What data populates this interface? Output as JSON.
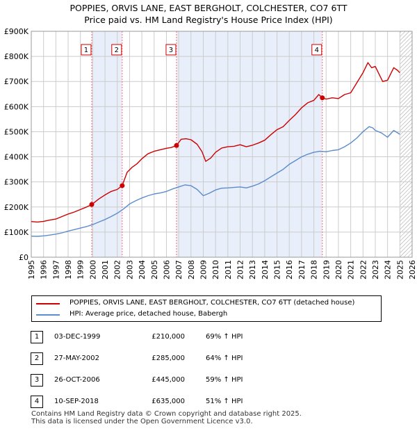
{
  "title_line1": "POPPIES, ORVIS LANE, EAST BERGHOLT, COLCHESTER, CO7 6TT",
  "title_line2": "Price paid vs. HM Land Registry's House Price Index (HPI)",
  "colors": {
    "property_line": "#cc0000",
    "hpi_line": "#5b8ccc",
    "shade": "#e8eefa",
    "grid": "#cccccc",
    "vline": "#ff6666",
    "hatch": "#999999"
  },
  "legend": {
    "property_label": "POPPIES, ORVIS LANE, EAST BERGHOLT, COLCHESTER, CO7 6TT (detached house)",
    "hpi_label": "HPI: Average price, detached house, Babergh"
  },
  "sales": [
    {
      "num": "1",
      "date": "03-DEC-1999",
      "price": "£210,000",
      "hpi": "69% ↑ HPI"
    },
    {
      "num": "2",
      "date": "27-MAY-2002",
      "price": "£285,000",
      "hpi": "64% ↑ HPI"
    },
    {
      "num": "3",
      "date": "26-OCT-2006",
      "price": "£445,000",
      "hpi": "59% ↑ HPI"
    },
    {
      "num": "4",
      "date": "10-SEP-2018",
      "price": "£635,000",
      "hpi": "51% ↑ HPI"
    }
  ],
  "footer": {
    "line1": "Contains HM Land Registry data © Crown copyright and database right 2025.",
    "line2": "This data is licensed under the Open Government Licence v3.0."
  },
  "chart_data": {
    "type": "line",
    "xlim": [
      1995,
      2026
    ],
    "ylim": [
      0,
      900000
    ],
    "y_ticks": [
      0,
      100000,
      200000,
      300000,
      400000,
      500000,
      600000,
      700000,
      800000,
      900000
    ],
    "y_tick_labels": [
      "£0",
      "£100K",
      "£200K",
      "£300K",
      "£400K",
      "£500K",
      "£600K",
      "£700K",
      "£800K",
      "£900K"
    ],
    "x_ticks": [
      1995,
      1996,
      1997,
      1998,
      1999,
      2000,
      2001,
      2002,
      2003,
      2004,
      2005,
      2006,
      2007,
      2008,
      2009,
      2010,
      2011,
      2012,
      2013,
      2014,
      2015,
      2016,
      2017,
      2018,
      2019,
      2020,
      2021,
      2022,
      2023,
      2024,
      2025,
      2026
    ],
    "x_tick_labels": [
      "1995",
      "1996",
      "1997",
      "1998",
      "1999",
      "2000",
      "2001",
      "2002",
      "2003",
      "2004",
      "2005",
      "2006",
      "2007",
      "2008",
      "2009",
      "2010",
      "2011",
      "2012",
      "2013",
      "2014",
      "2015",
      "2016",
      "2017",
      "2018",
      "2019",
      "2020",
      "2021",
      "2022",
      "2023",
      "2024",
      "2025",
      "2026"
    ],
    "shaded_ranges": [
      [
        1999.92,
        2002.4
      ],
      [
        2006.82,
        2018.69
      ]
    ],
    "hatch_from": 2025.0,
    "series": [
      {
        "name": "POPPIES, ORVIS LANE, EAST BERGHOLT, COLCHESTER, CO7 6TT (detached house)",
        "x": [
          1995.0,
          1995.5,
          1996.0,
          1996.5,
          1997.0,
          1997.5,
          1998.0,
          1998.5,
          1999.0,
          1999.5,
          1999.92,
          2000.5,
          2001.0,
          2001.5,
          2002.0,
          2002.4,
          2002.8,
          2003.2,
          2003.6,
          2004.0,
          2004.5,
          2005.0,
          2005.5,
          2006.0,
          2006.4,
          2006.82,
          2007.2,
          2007.6,
          2008.0,
          2008.5,
          2008.9,
          2009.2,
          2009.6,
          2010.0,
          2010.5,
          2011.0,
          2011.5,
          2012.0,
          2012.5,
          2013.0,
          2013.5,
          2014.0,
          2014.5,
          2015.0,
          2015.5,
          2016.0,
          2016.5,
          2017.0,
          2017.5,
          2018.0,
          2018.4,
          2018.69,
          2019.0,
          2019.5,
          2020.0,
          2020.5,
          2021.0,
          2021.5,
          2022.0,
          2022.4,
          2022.7,
          2023.0,
          2023.3,
          2023.6,
          2024.0,
          2024.5,
          2024.8,
          2025.0
        ],
        "values": [
          142000,
          140000,
          143000,
          148000,
          152000,
          162000,
          172000,
          180000,
          190000,
          200000,
          210000,
          232000,
          248000,
          262000,
          270000,
          285000,
          338000,
          358000,
          372000,
          392000,
          412000,
          422000,
          428000,
          434000,
          437000,
          445000,
          470000,
          472000,
          468000,
          450000,
          420000,
          382000,
          395000,
          418000,
          435000,
          440000,
          442000,
          448000,
          440000,
          446000,
          455000,
          466000,
          488000,
          508000,
          520000,
          545000,
          568000,
          595000,
          615000,
          625000,
          648000,
          635000,
          630000,
          635000,
          632000,
          648000,
          655000,
          695000,
          735000,
          775000,
          755000,
          760000,
          730000,
          700000,
          705000,
          755000,
          745000,
          735000
        ]
      },
      {
        "name": "HPI: Average price, detached house, Babergh",
        "x": [
          1995.0,
          1995.5,
          1996.0,
          1996.5,
          1997.0,
          1997.5,
          1998.0,
          1998.5,
          1999.0,
          1999.5,
          2000.0,
          2000.5,
          2001.0,
          2001.5,
          2002.0,
          2002.5,
          2003.0,
          2003.5,
          2004.0,
          2004.5,
          2005.0,
          2005.5,
          2006.0,
          2006.5,
          2007.0,
          2007.5,
          2008.0,
          2008.5,
          2009.0,
          2009.5,
          2010.0,
          2010.5,
          2011.0,
          2011.5,
          2012.0,
          2012.5,
          2013.0,
          2013.5,
          2014.0,
          2014.5,
          2015.0,
          2015.5,
          2016.0,
          2016.5,
          2017.0,
          2017.5,
          2018.0,
          2018.5,
          2019.0,
          2019.5,
          2020.0,
          2020.5,
          2021.0,
          2021.5,
          2022.0,
          2022.5,
          2022.8,
          2023.0,
          2023.5,
          2024.0,
          2024.5,
          2025.0
        ],
        "values": [
          84000,
          83000,
          85000,
          88000,
          92000,
          97000,
          104000,
          110000,
          116000,
          122000,
          130000,
          140000,
          150000,
          162000,
          175000,
          192000,
          212000,
          225000,
          236000,
          245000,
          252000,
          256000,
          262000,
          272000,
          280000,
          288000,
          285000,
          270000,
          245000,
          255000,
          268000,
          275000,
          276000,
          278000,
          280000,
          276000,
          283000,
          292000,
          305000,
          320000,
          335000,
          350000,
          370000,
          385000,
          400000,
          410000,
          418000,
          422000,
          420000,
          425000,
          428000,
          440000,
          455000,
          475000,
          500000,
          520000,
          515000,
          505000,
          495000,
          478000,
          505000,
          490000
        ]
      }
    ],
    "sale_markers": [
      {
        "label": "1",
        "x": 1999.92,
        "y": 210000
      },
      {
        "label": "2",
        "x": 2002.4,
        "y": 285000
      },
      {
        "label": "3",
        "x": 2006.82,
        "y": 445000
      },
      {
        "label": "4",
        "x": 2018.69,
        "y": 635000
      }
    ]
  }
}
